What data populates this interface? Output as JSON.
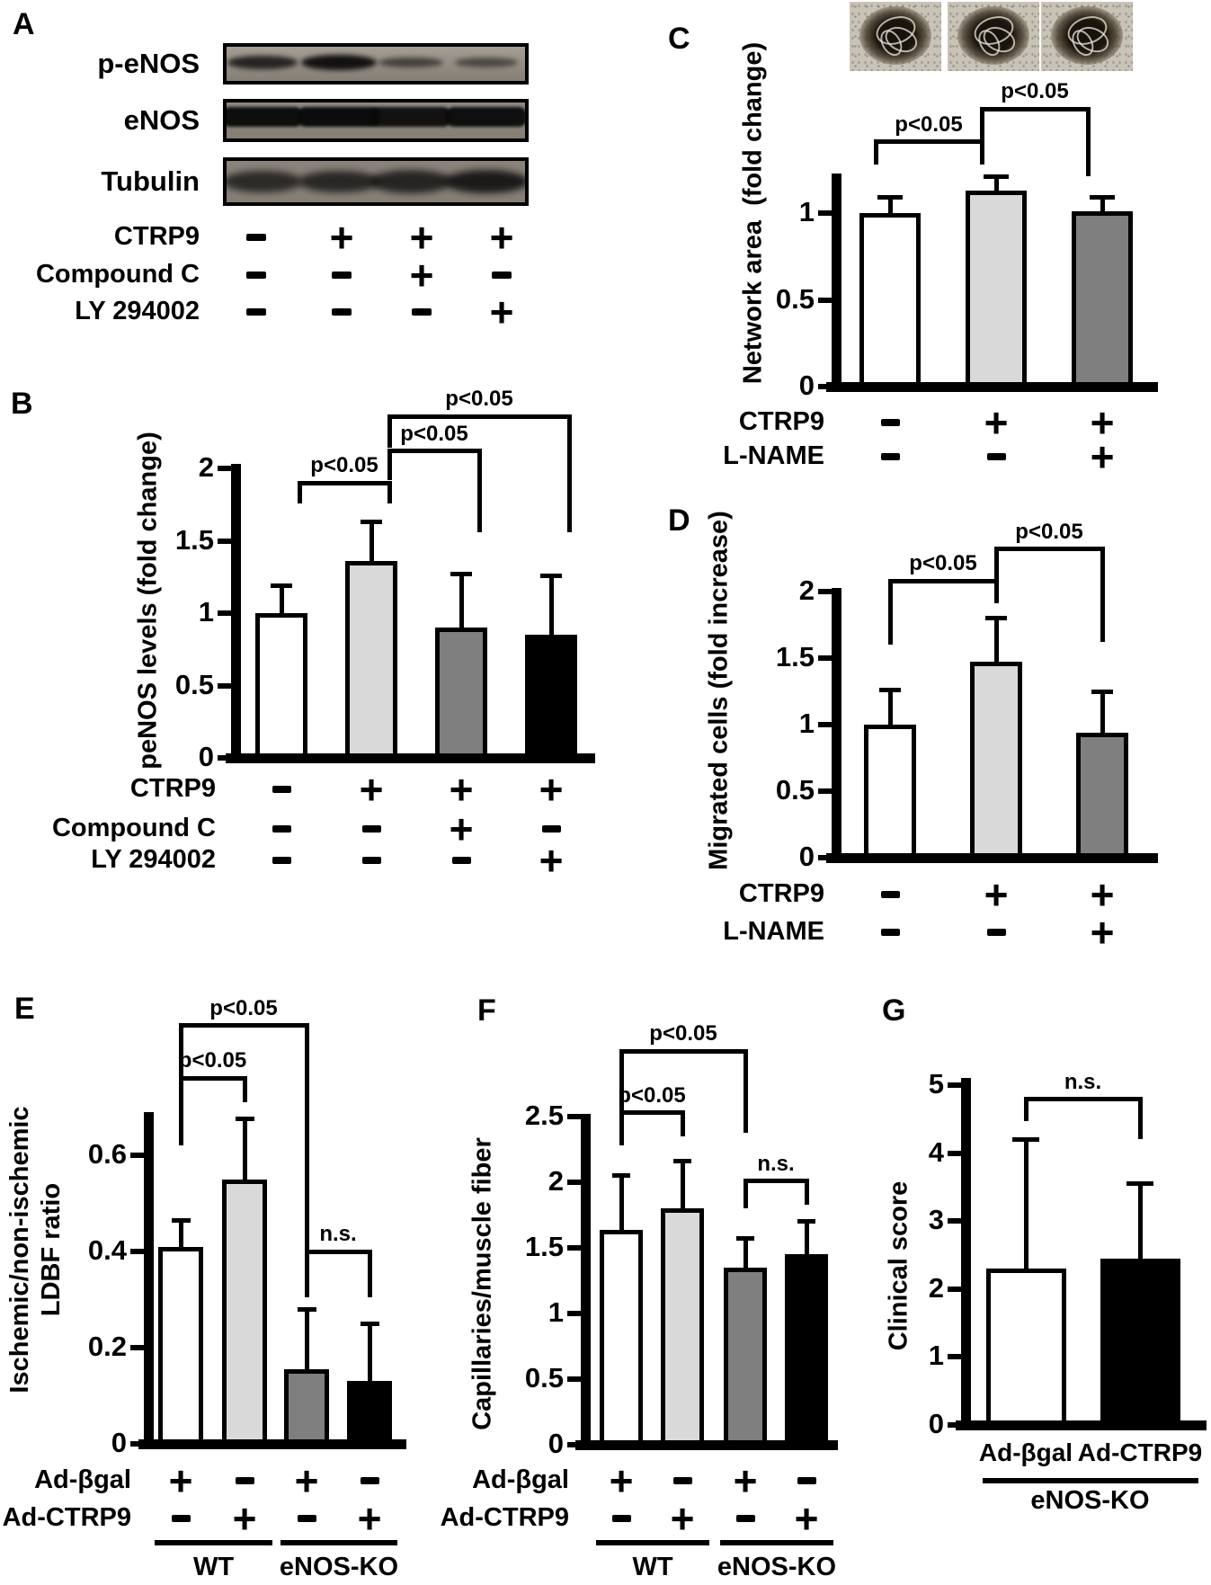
{
  "panel_a": {
    "label": "A",
    "blot_rows": [
      {
        "label": "p-eNOS",
        "band_intensities": [
          0.72,
          0.92,
          0.42,
          0.33
        ]
      },
      {
        "label": "eNOS",
        "band_intensities": [
          0.95,
          0.97,
          0.9,
          0.93
        ]
      },
      {
        "label": "Tubulin",
        "band_intensities": [
          0.6,
          0.64,
          0.68,
          0.8
        ]
      }
    ],
    "treatment_rows": [
      {
        "label": "CTRP9",
        "symbols": [
          "-",
          "+",
          "+",
          "+"
        ]
      },
      {
        "label": "Compound C",
        "symbols": [
          "-",
          "-",
          "+",
          "-"
        ]
      },
      {
        "label": "LY 294002",
        "symbols": [
          "-",
          "-",
          "-",
          "+"
        ]
      }
    ]
  },
  "colors": {
    "bar_white": "#ffffff",
    "bar_light_gray": "#d9d9d9",
    "bar_dark_gray": "#7f7f7f",
    "bar_black": "#000000",
    "ink": "#000000"
  },
  "chart_data": [
    {
      "id": "B",
      "panel_label": "B",
      "type": "bar",
      "ylabel_lines": [
        "peNOS levels (fold change)"
      ],
      "ylim": [
        0,
        2.03
      ],
      "yticks": [
        0,
        0.5,
        1,
        1.5,
        2
      ],
      "values": [
        1.0,
        1.36,
        0.9,
        0.85
      ],
      "errors": [
        0.19,
        0.27,
        0.37,
        0.41
      ],
      "bar_colors": [
        "#ffffff",
        "#d9d9d9",
        "#7f7f7f",
        "#000000"
      ],
      "brackets": [
        {
          "from": 0,
          "to": 1,
          "label": "p<0.05",
          "y": 1.9,
          "drop_from": 0.14,
          "drop_to": 0.14
        },
        {
          "from": 1,
          "to": 2,
          "label": "p<0.05",
          "y": 2.12,
          "drop_from": 0.2,
          "drop_to": 0.56
        },
        {
          "from": 1,
          "to": 3,
          "label": "p<0.05",
          "y": 2.36,
          "drop_from": 0.22,
          "drop_to": 0.8
        }
      ],
      "x_rows": [
        {
          "label": "CTRP9",
          "symbols": [
            "-",
            "+",
            "+",
            "+"
          ]
        },
        {
          "label": "Compound C",
          "symbols": [
            "-",
            "-",
            "+",
            "-"
          ]
        },
        {
          "label": "LY 294002",
          "symbols": [
            "-",
            "-",
            "-",
            "+"
          ]
        }
      ]
    },
    {
      "id": "C",
      "panel_label": "C",
      "type": "bar",
      "ylabel_lines": [
        "Network area  (fold change)"
      ],
      "ylim": [
        0,
        1.23
      ],
      "yticks": [
        0,
        0.5,
        1
      ],
      "values": [
        1.0,
        1.13,
        1.01
      ],
      "errors": [
        0.09,
        0.08,
        0.08
      ],
      "bar_colors": [
        "#ffffff",
        "#d9d9d9",
        "#7f7f7f"
      ],
      "images_above": 3,
      "brackets": [
        {
          "from": 0,
          "to": 1,
          "label": "p<0.05",
          "y": 1.41,
          "drop_from": 0.13,
          "drop_to": 0.13
        },
        {
          "from": 1,
          "to": 2,
          "label": "p<0.05",
          "y": 1.6,
          "drop_from": 0.19,
          "drop_to": 0.39
        }
      ],
      "x_rows": [
        {
          "label": "CTRP9",
          "symbols": [
            "-",
            "+",
            "+"
          ]
        },
        {
          "label": "L-NAME",
          "symbols": [
            "-",
            "-",
            "+"
          ]
        }
      ]
    },
    {
      "id": "D",
      "panel_label": "D",
      "type": "bar",
      "ylabel_lines": [
        "Migrated cells (fold increase)"
      ],
      "ylim": [
        0,
        2.03
      ],
      "yticks": [
        0,
        0.5,
        1,
        1.5,
        2
      ],
      "values": [
        1.0,
        1.47,
        0.94
      ],
      "errors": [
        0.26,
        0.33,
        0.31
      ],
      "bar_colors": [
        "#ffffff",
        "#d9d9d9",
        "#7f7f7f"
      ],
      "brackets": [
        {
          "from": 0,
          "to": 1,
          "label": "p<0.05",
          "y": 2.08,
          "drop_from": 0.48,
          "drop_to": 0.17
        },
        {
          "from": 1,
          "to": 2,
          "label": "p<0.05",
          "y": 2.32,
          "drop_from": 0.24,
          "drop_to": 0.7
        }
      ],
      "x_rows": [
        {
          "label": "CTRP9",
          "symbols": [
            "-",
            "+",
            "+"
          ]
        },
        {
          "label": "L-NAME",
          "symbols": [
            "-",
            "-",
            "+"
          ]
        }
      ]
    },
    {
      "id": "E",
      "panel_label": "E",
      "type": "bar",
      "ylabel_lines": [
        "Ischemic/non-ischemic",
        "LDBF ratio"
      ],
      "ylim": [
        0,
        0.69
      ],
      "yticks": [
        0,
        0.2,
        0.4,
        0.6
      ],
      "values": [
        0.41,
        0.55,
        0.155,
        0.13
      ],
      "errors": [
        0.055,
        0.125,
        0.125,
        0.12
      ],
      "bar_colors": [
        "#ffffff",
        "#d9d9d9",
        "#7f7f7f",
        "#000000"
      ],
      "brackets": [
        {
          "from": 0,
          "to": 1,
          "label": "p<0.05",
          "y": 0.76,
          "drop_from": 0.14,
          "drop_to": 0.05
        },
        {
          "from": 0,
          "to": 2,
          "label": "p<0.05",
          "y": 0.87,
          "drop_from": 0.11,
          "drop_to": 0.5
        },
        {
          "from": 2,
          "to": 3,
          "label": "n.s.",
          "y": 0.4,
          "drop_from": 0.095,
          "drop_to": 0.095
        }
      ],
      "x_rows": [
        {
          "label": "Ad-βgal",
          "symbols": [
            "+",
            "-",
            "+",
            "-"
          ]
        },
        {
          "label": "Ad-CTRP9",
          "symbols": [
            "-",
            "+",
            "-",
            "+"
          ]
        }
      ],
      "groups": [
        {
          "label": "WT",
          "from": 0,
          "to": 1
        },
        {
          "label": "eNOS-KO",
          "from": 2,
          "to": 3
        }
      ]
    },
    {
      "id": "F",
      "panel_label": "F",
      "type": "bar",
      "ylabel_lines": [
        "Capillaries/muscle fiber"
      ],
      "ylim": [
        0,
        2.52
      ],
      "yticks": [
        0,
        0.5,
        1,
        1.5,
        2,
        2.5
      ],
      "values": [
        1.64,
        1.8,
        1.35,
        1.45
      ],
      "errors": [
        0.41,
        0.36,
        0.22,
        0.25
      ],
      "bar_colors": [
        "#ffffff",
        "#d9d9d9",
        "#7f7f7f",
        "#000000"
      ],
      "brackets": [
        {
          "from": 0,
          "to": 1,
          "label": "p<0.05",
          "y": 2.53,
          "drop_from": 0.25,
          "drop_to": 0.18
        },
        {
          "from": 0,
          "to": 2,
          "label": "p<0.05",
          "y": 3.0,
          "drop_from": 0.47,
          "drop_to": 0.62
        },
        {
          "from": 2,
          "to": 3,
          "label": "n.s.",
          "y": 2.01,
          "drop_from": 0.21,
          "drop_to": 0.18
        }
      ],
      "x_rows": [
        {
          "label": "Ad-βgal",
          "symbols": [
            "+",
            "-",
            "+",
            "-"
          ]
        },
        {
          "label": "Ad-CTRP9",
          "symbols": [
            "-",
            "+",
            "-",
            "+"
          ]
        }
      ],
      "groups": [
        {
          "label": "WT",
          "from": 0,
          "to": 1
        },
        {
          "label": "eNOS-KO",
          "from": 2,
          "to": 3
        }
      ]
    },
    {
      "id": "G",
      "panel_label": "G",
      "type": "bar",
      "ylabel_lines": [
        "Clinical score"
      ],
      "ylim": [
        0,
        5.1
      ],
      "yticks": [
        0,
        1,
        2,
        3,
        4,
        5
      ],
      "values": [
        2.3,
        2.45
      ],
      "errors": [
        1.9,
        1.1
      ],
      "bar_colors": [
        "#ffffff",
        "#000000"
      ],
      "brackets": [
        {
          "from": 0,
          "to": 1,
          "label": "n.s.",
          "y": 4.79,
          "drop_from": 0.32,
          "drop_to": 0.58
        }
      ],
      "x_labels": [
        "Ad-βgal",
        "Ad-CTRP9"
      ],
      "groups": [
        {
          "label": "eNOS-KO",
          "from": 0,
          "to": 1
        }
      ]
    }
  ]
}
